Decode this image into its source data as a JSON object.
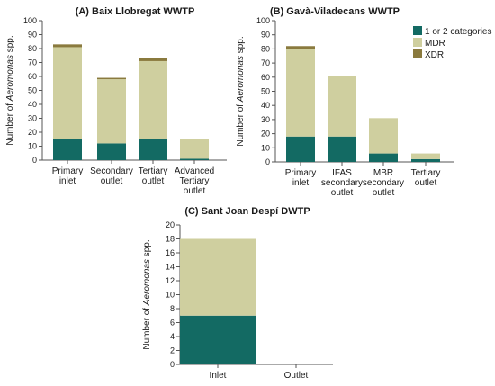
{
  "colors": {
    "one_or_two": "#136a63",
    "mdr": "#cfcf9f",
    "xdr": "#8a7a3e"
  },
  "legend": [
    {
      "label": "1 or 2 categories",
      "color_key": "one_or_two"
    },
    {
      "label": "MDR",
      "color_key": "mdr"
    },
    {
      "label": "XDR",
      "color_key": "xdr"
    }
  ],
  "chart_data": [
    {
      "type": "bar",
      "stacked": true,
      "title": "(A) Baix Llobregat WWTP",
      "ylabel_parts": [
        "Number of ",
        "Aeromonas",
        " spp."
      ],
      "ylim": [
        0,
        100
      ],
      "yticks": [
        0,
        10,
        20,
        30,
        40,
        50,
        60,
        70,
        80,
        90,
        100
      ],
      "categories": [
        [
          "Primary",
          "inlet"
        ],
        [
          "Secondary",
          "outlet"
        ],
        [
          "Tertiary",
          "outlet"
        ],
        [
          "Advanced",
          "Tertiary",
          "outlet"
        ]
      ],
      "series": [
        {
          "name": "1 or 2 categories",
          "values": [
            15,
            12,
            15,
            1
          ]
        },
        {
          "name": "MDR",
          "values": [
            66,
            46,
            56,
            14
          ]
        },
        {
          "name": "XDR",
          "values": [
            2,
            1,
            2,
            0
          ]
        }
      ]
    },
    {
      "type": "bar",
      "stacked": true,
      "title": "(B) Gavà-Viladecans WWTP",
      "ylabel_parts": [
        "Number of ",
        "Aeromonas",
        " spp."
      ],
      "ylim": [
        0,
        100
      ],
      "yticks": [
        0,
        10,
        20,
        30,
        40,
        50,
        60,
        70,
        80,
        90,
        100
      ],
      "categories": [
        [
          "Primary",
          "inlet"
        ],
        [
          "IFAS",
          "secondary",
          "outlet"
        ],
        [
          "MBR",
          "secondary",
          "outlet"
        ],
        [
          "Tertiary",
          "outlet"
        ]
      ],
      "series": [
        {
          "name": "1 or 2 categories",
          "values": [
            18,
            18,
            6,
            2
          ]
        },
        {
          "name": "MDR",
          "values": [
            62,
            43,
            25,
            4
          ]
        },
        {
          "name": "XDR",
          "values": [
            2,
            0,
            0,
            0
          ]
        }
      ]
    },
    {
      "type": "bar",
      "stacked": true,
      "title": "(C) Sant Joan Despí DWTP",
      "ylabel_parts": [
        "Number of ",
        "Aeromonas",
        " spp."
      ],
      "ylim": [
        0,
        20
      ],
      "yticks": [
        0,
        2,
        4,
        6,
        8,
        10,
        12,
        14,
        16,
        18,
        20
      ],
      "categories": [
        [
          "Inlet"
        ],
        [
          "Outlet"
        ]
      ],
      "series": [
        {
          "name": "1 or 2 categories",
          "values": [
            7,
            0
          ]
        },
        {
          "name": "MDR",
          "values": [
            11,
            0
          ]
        },
        {
          "name": "XDR",
          "values": [
            0,
            0
          ]
        }
      ]
    }
  ]
}
